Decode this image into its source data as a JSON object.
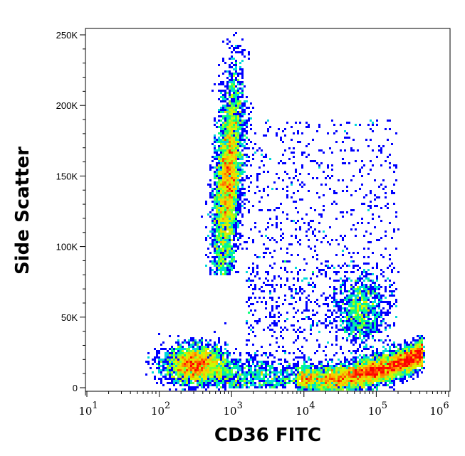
{
  "chart_data": {
    "type": "scatter",
    "subtype": "density-dot-plot",
    "xlabel": "CD36 FITC",
    "ylabel": "Side Scatter",
    "x_scale": "log",
    "xlim": [
      10,
      1000000
    ],
    "ylim": [
      0,
      250000
    ],
    "x_ticks": [
      {
        "base": "10",
        "exp": "1",
        "value": 10
      },
      {
        "base": "10",
        "exp": "2",
        "value": 100
      },
      {
        "base": "10",
        "exp": "3",
        "value": 1000
      },
      {
        "base": "10",
        "exp": "4",
        "value": 10000
      },
      {
        "base": "10",
        "exp": "5",
        "value": 100000
      },
      {
        "base": "10",
        "exp": "6",
        "value": 1000000
      }
    ],
    "y_ticks": [
      {
        "label": "0",
        "value": 0
      },
      {
        "label": "50K",
        "value": 50000
      },
      {
        "label": "100K",
        "value": 100000
      },
      {
        "label": "150K",
        "value": 150000
      },
      {
        "label": "200K",
        "value": 200000
      },
      {
        "label": "250K",
        "value": 250000
      }
    ],
    "grid": false,
    "legend": "none",
    "color_scale": [
      "#0000ff",
      "#00c8ff",
      "#00ff80",
      "#c8ff00",
      "#ffc800",
      "#ff0000"
    ],
    "populations": [
      {
        "x_center": 900,
        "y_center": 150000,
        "x_log_sd": 0.09,
        "y_sd": 35000,
        "y_range": [
          80000,
          255000
        ],
        "relative_count": 4200
      },
      {
        "x_center": 320,
        "y_center": 16000,
        "x_log_sd": 0.22,
        "y_sd": 7000,
        "relative_count": 2600
      },
      {
        "x_center": 90000,
        "y_center": 11000,
        "x_log_sd": 0.35,
        "y_sd": 5000,
        "relative_count": 5500
      },
      {
        "x_center": 60000,
        "y_center": 55000,
        "x_log_sd": 0.15,
        "y_sd": 12000,
        "relative_count": 900
      },
      {
        "x_center": 15000,
        "y_center": 140000,
        "x_log_sd": 0.45,
        "y_sd": 40000,
        "relative_count": 1100
      },
      {
        "x_center": 5000,
        "y_center": 10000,
        "x_log_sd": 0.35,
        "y_sd": 7000,
        "relative_count": 900
      }
    ]
  }
}
